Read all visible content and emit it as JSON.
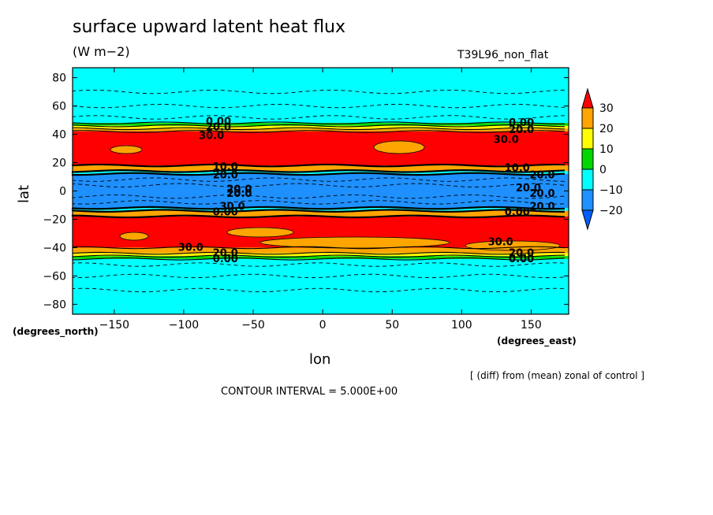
{
  "chart_data": {
    "type": "heatmap",
    "title": "surface upward latent heat flux",
    "units": "(W m−2)",
    "run_label": "T39L96_non_flat",
    "xlabel": "lon",
    "ylabel": "lat",
    "x_unit_label": "(degrees_east)",
    "y_unit_label": "(degrees_north)",
    "xlim": [
      -180,
      177
    ],
    "ylim": [
      -87,
      87
    ],
    "x_ticks": [
      -150,
      -100,
      -50,
      0,
      50,
      100,
      150
    ],
    "x_tick_labels": [
      "−150",
      "−100",
      "−50",
      "0",
      "50",
      "100",
      "150"
    ],
    "y_ticks": [
      80,
      60,
      40,
      20,
      0,
      -20,
      -40,
      -60,
      -80
    ],
    "y_tick_labels": [
      "80",
      "60",
      "40",
      "20",
      "0",
      "−20",
      "−40",
      "−60",
      "−80"
    ],
    "colorbar": {
      "levels": [
        -20,
        -10,
        0,
        10,
        20,
        30
      ],
      "labels": [
        "−20",
        "−10",
        "0",
        "10",
        "20",
        "30"
      ],
      "colors": [
        "#1e90ff",
        "#00ffff",
        "#00d800",
        "#ffff00",
        "#ffa500",
        "#ff0000"
      ],
      "under_color": "#0060ff",
      "over_color": "#ff0000"
    },
    "bands": [
      {
        "lat_min": 48,
        "lat_max": 87,
        "value": -5
      },
      {
        "lat_min": 46,
        "lat_max": 48,
        "value": 5
      },
      {
        "lat_min": 44,
        "lat_max": 46,
        "value": 15
      },
      {
        "lat_min": 42,
        "lat_max": 44,
        "value": 25
      },
      {
        "lat_min": 18,
        "lat_max": 42,
        "value": 35
      },
      {
        "lat_min": 14,
        "lat_max": 18,
        "value": 25
      },
      {
        "lat_min": 12,
        "lat_max": 14,
        "value": -5
      },
      {
        "lat_min": -12,
        "lat_max": 12,
        "value": -15
      },
      {
        "lat_min": -14,
        "lat_max": -12,
        "value": -5
      },
      {
        "lat_min": -18,
        "lat_max": -14,
        "value": 25
      },
      {
        "lat_min": -40,
        "lat_max": -18,
        "value": 35
      },
      {
        "lat_min": -44,
        "lat_max": -40,
        "value": 25
      },
      {
        "lat_min": -46,
        "lat_max": -44,
        "value": 15
      },
      {
        "lat_min": -48,
        "lat_max": -46,
        "value": 5
      },
      {
        "lat_min": -87,
        "lat_max": -48,
        "value": -5
      }
    ],
    "contour_labels": [
      {
        "text": "0.00",
        "lon": -75,
        "lat": 49
      },
      {
        "text": "20.0",
        "lon": -75,
        "lat": 45
      },
      {
        "text": "30.0",
        "lon": -80,
        "lat": 39
      },
      {
        "text": "10.0",
        "lon": -70,
        "lat": 17
      },
      {
        "text": "20.0",
        "lon": -70,
        "lat": 11
      },
      {
        "text": "20.0",
        "lon": -60,
        "lat": 1
      },
      {
        "text": "20.0",
        "lon": -60,
        "lat": -2
      },
      {
        "text": "30.0",
        "lon": -65,
        "lat": -11
      },
      {
        "text": "0.00",
        "lon": -70,
        "lat": -15
      },
      {
        "text": "30.0",
        "lon": -95,
        "lat": -40
      },
      {
        "text": "20.0",
        "lon": -70,
        "lat": -44
      },
      {
        "text": "0.00",
        "lon": -70,
        "lat": -48
      },
      {
        "text": "0.00",
        "lon": 143,
        "lat": 48
      },
      {
        "text": "20.0",
        "lon": 143,
        "lat": 43
      },
      {
        "text": "30.0",
        "lon": 132,
        "lat": 36
      },
      {
        "text": "10.0",
        "lon": 140,
        "lat": 16
      },
      {
        "text": "20.0",
        "lon": 158,
        "lat": 11
      },
      {
        "text": "20.0",
        "lon": 148,
        "lat": 2
      },
      {
        "text": "20.0",
        "lon": 158,
        "lat": -2
      },
      {
        "text": "20.0",
        "lon": 158,
        "lat": -11
      },
      {
        "text": "0.00",
        "lon": 140,
        "lat": -15
      },
      {
        "text": "30.0",
        "lon": 128,
        "lat": -36
      },
      {
        "text": "20.0",
        "lon": 143,
        "lat": -44
      },
      {
        "text": "0.00",
        "lon": 143,
        "lat": -48
      }
    ]
  },
  "footer": {
    "note": "[ (diff) from (mean) zonal of control ]",
    "contour_interval": "CONTOUR INTERVAL = 5.000E+00"
  }
}
